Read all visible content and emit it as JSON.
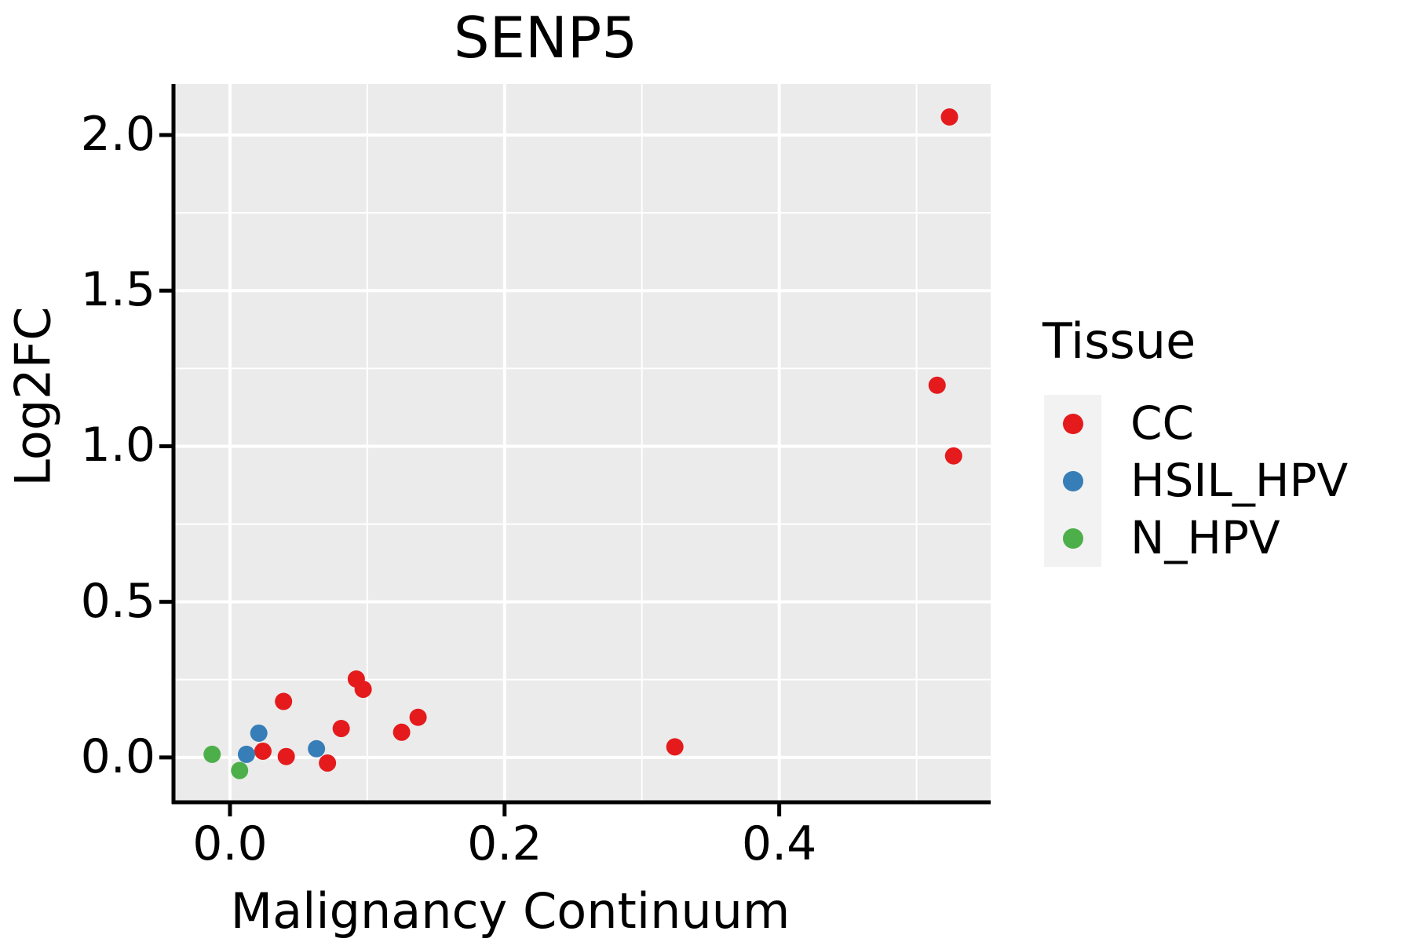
{
  "figure": {
    "title": "SENP5",
    "x_axis_label": "Malignancy Continuum",
    "y_axis_label": "Log2FC"
  },
  "legend": {
    "title": "Tissue",
    "entries": [
      {
        "label": "CC",
        "color": "#E41A1C"
      },
      {
        "label": "HSIL_HPV",
        "color": "#377EB8"
      },
      {
        "label": "N_HPV",
        "color": "#4DAF4A"
      }
    ]
  },
  "chart_data": {
    "type": "scatter",
    "title": "SENP5",
    "xlabel": "Malignancy Continuum",
    "ylabel": "Log2FC",
    "xlim": [
      -0.04,
      0.554
    ],
    "ylim": [
      -0.139,
      2.164
    ],
    "x_ticks": [
      0.0,
      0.2,
      0.4
    ],
    "x_tick_labels": [
      "0.0",
      "0.2",
      "0.4"
    ],
    "x_minor_ticks": [
      0.1,
      0.3,
      0.5
    ],
    "y_ticks": [
      0.0,
      0.5,
      1.0,
      1.5,
      2.0
    ],
    "y_tick_labels": [
      "0.0",
      "0.5",
      "1.0",
      "1.5",
      "2.0"
    ],
    "y_minor_ticks": [
      0.25,
      0.75,
      1.25,
      1.75
    ],
    "grid": true,
    "panel_background": "#EBEBEB",
    "gridline_color": "#FFFFFF",
    "legend_position": "right",
    "point_radius": 11,
    "series": [
      {
        "name": "CC",
        "color": "#E41A1C",
        "points": [
          [
            0.024,
            0.02
          ],
          [
            0.039,
            0.18
          ],
          [
            0.041,
            0.003
          ],
          [
            0.071,
            -0.018
          ],
          [
            0.081,
            0.093
          ],
          [
            0.092,
            0.252
          ],
          [
            0.097,
            0.219
          ],
          [
            0.125,
            0.081
          ],
          [
            0.137,
            0.129
          ],
          [
            0.324,
            0.034
          ],
          [
            0.515,
            1.196
          ],
          [
            0.527,
            0.969
          ],
          [
            0.524,
            2.058
          ]
        ]
      },
      {
        "name": "HSIL_HPV",
        "color": "#377EB8",
        "points": [
          [
            0.012,
            0.01
          ],
          [
            0.021,
            0.078
          ],
          [
            0.063,
            0.028
          ]
        ]
      },
      {
        "name": "N_HPV",
        "color": "#4DAF4A",
        "points": [
          [
            -0.013,
            0.01
          ],
          [
            0.007,
            -0.042
          ]
        ]
      }
    ]
  }
}
